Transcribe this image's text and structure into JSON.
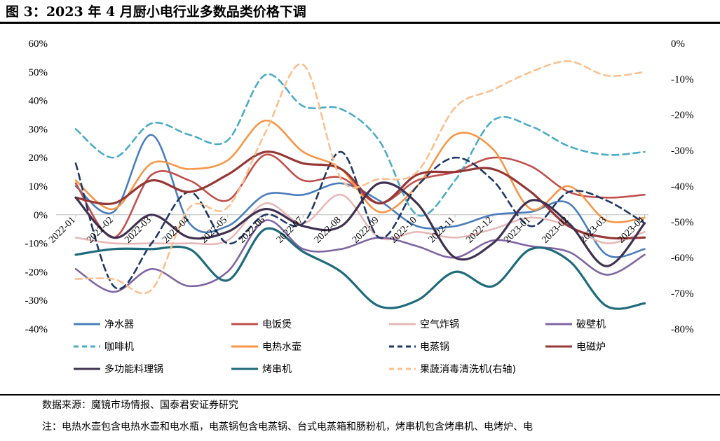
{
  "title": "图 3：2023 年 4 月厨小电行业多数品类价格下调",
  "source": "数据来源：魔镜市场情报、国泰君安证券研究",
  "note": "注：电热水壶包含电热水壶和电水瓶，电蒸锅包含电蒸锅、台式电蒸箱和肠粉机，烤串机包含烤串机、电烤炉、电",
  "chart_data": {
    "type": "line",
    "x": [
      "2022-01",
      "2022-02",
      "2022-03",
      "2022-04",
      "2022-05",
      "2022-06",
      "2022-07",
      "2022-08",
      "2022-09",
      "2022-10",
      "2022-11",
      "2022-12",
      "2023-01",
      "2023-02",
      "2023-03",
      "2023-04"
    ],
    "y_left_ticks": [
      "60%",
      "50%",
      "40%",
      "30%",
      "20%",
      "10%",
      "0%",
      "-10%",
      "-20%",
      "-30%",
      "-40%"
    ],
    "y_right_ticks": [
      "0%",
      "-10%",
      "-20%",
      "-30%",
      "-40%",
      "-50%",
      "-60%",
      "-70%",
      "-80%"
    ],
    "ylim_left": [
      -40,
      60
    ],
    "ylim_right": [
      -80,
      0
    ],
    "grid": false,
    "legend_position": "bottom",
    "series": [
      {
        "name": "净水器",
        "axis": "left",
        "color": "#4a7ebb",
        "dash": "solid",
        "values": [
          10,
          1,
          28,
          -3,
          -4,
          7,
          7,
          11,
          5,
          -4,
          -4,
          0,
          1,
          4,
          -14,
          -12
        ]
      },
      {
        "name": "电饭煲",
        "axis": "left",
        "color": "#c0504d",
        "dash": "solid",
        "values": [
          11,
          -8,
          14,
          12,
          5,
          21,
          12,
          13,
          4,
          12,
          15,
          20,
          17,
          8,
          6,
          7
        ]
      },
      {
        "name": "空气炸锅",
        "axis": "left",
        "color": "#e6b9b8",
        "dash": "solid",
        "values": [
          -8,
          -10,
          -10,
          -10,
          -9,
          4,
          -3,
          7,
          -8,
          -6,
          -8,
          -5,
          -1,
          -4,
          -10,
          -6
        ]
      },
      {
        "name": "破壁机",
        "axis": "left",
        "color": "#8064a2",
        "dash": "solid",
        "values": [
          -19,
          -27,
          -19,
          -25,
          -20,
          -2,
          -12,
          -12,
          -8,
          -11,
          -15,
          -9,
          -11,
          -13,
          -21,
          -14
        ]
      },
      {
        "name": "咖啡机",
        "axis": "left",
        "color": "#4bacc6",
        "dash": "dashed",
        "values": [
          30,
          20,
          32,
          28,
          26,
          49,
          38,
          37,
          26,
          0,
          12,
          33,
          31,
          24,
          21,
          22
        ]
      },
      {
        "name": "电热水壶",
        "axis": "left",
        "color": "#f79646",
        "dash": "solid",
        "values": [
          12,
          2,
          18,
          16,
          19,
          33,
          22,
          16,
          1,
          10,
          28,
          23,
          2,
          10,
          -2,
          -1
        ]
      },
      {
        "name": "电蒸锅",
        "axis": "left",
        "color": "#1f3864",
        "dash": "dashed",
        "values": [
          18,
          -25,
          -10,
          8,
          -10,
          0,
          -3,
          22,
          -8,
          10,
          20,
          12,
          -4,
          8,
          5,
          -3
        ]
      },
      {
        "name": "电磁炉",
        "axis": "left",
        "color": "#953735",
        "dash": "solid",
        "values": [
          6,
          4,
          12,
          8,
          14,
          22,
          18,
          16,
          4,
          14,
          15,
          16,
          8,
          -4,
          -8,
          -8
        ]
      },
      {
        "name": "多功能料理锅",
        "axis": "left",
        "color": "#403151",
        "dash": "solid",
        "values": [
          6,
          -8,
          0,
          -8,
          -6,
          2,
          -4,
          -4,
          11,
          4,
          -15,
          -10,
          5,
          -3,
          -18,
          -3
        ]
      },
      {
        "name": "烤串机",
        "axis": "left",
        "color": "#1e6b7b",
        "dash": "solid",
        "values": [
          -14,
          -12,
          -12,
          -12,
          -23,
          -5,
          -13,
          -20,
          -32,
          -30,
          -20,
          -25,
          -12,
          -16,
          -32,
          -31
        ]
      },
      {
        "name": "果蔬消毒清洗机(右轴)",
        "axis": "right",
        "color": "#fac090",
        "dash": "dashed",
        "values": [
          -66,
          -66,
          -69,
          -46,
          -46,
          -25,
          -6,
          -38,
          -38,
          -36,
          -18,
          -13,
          -8,
          -5,
          -9,
          -8
        ]
      }
    ]
  }
}
